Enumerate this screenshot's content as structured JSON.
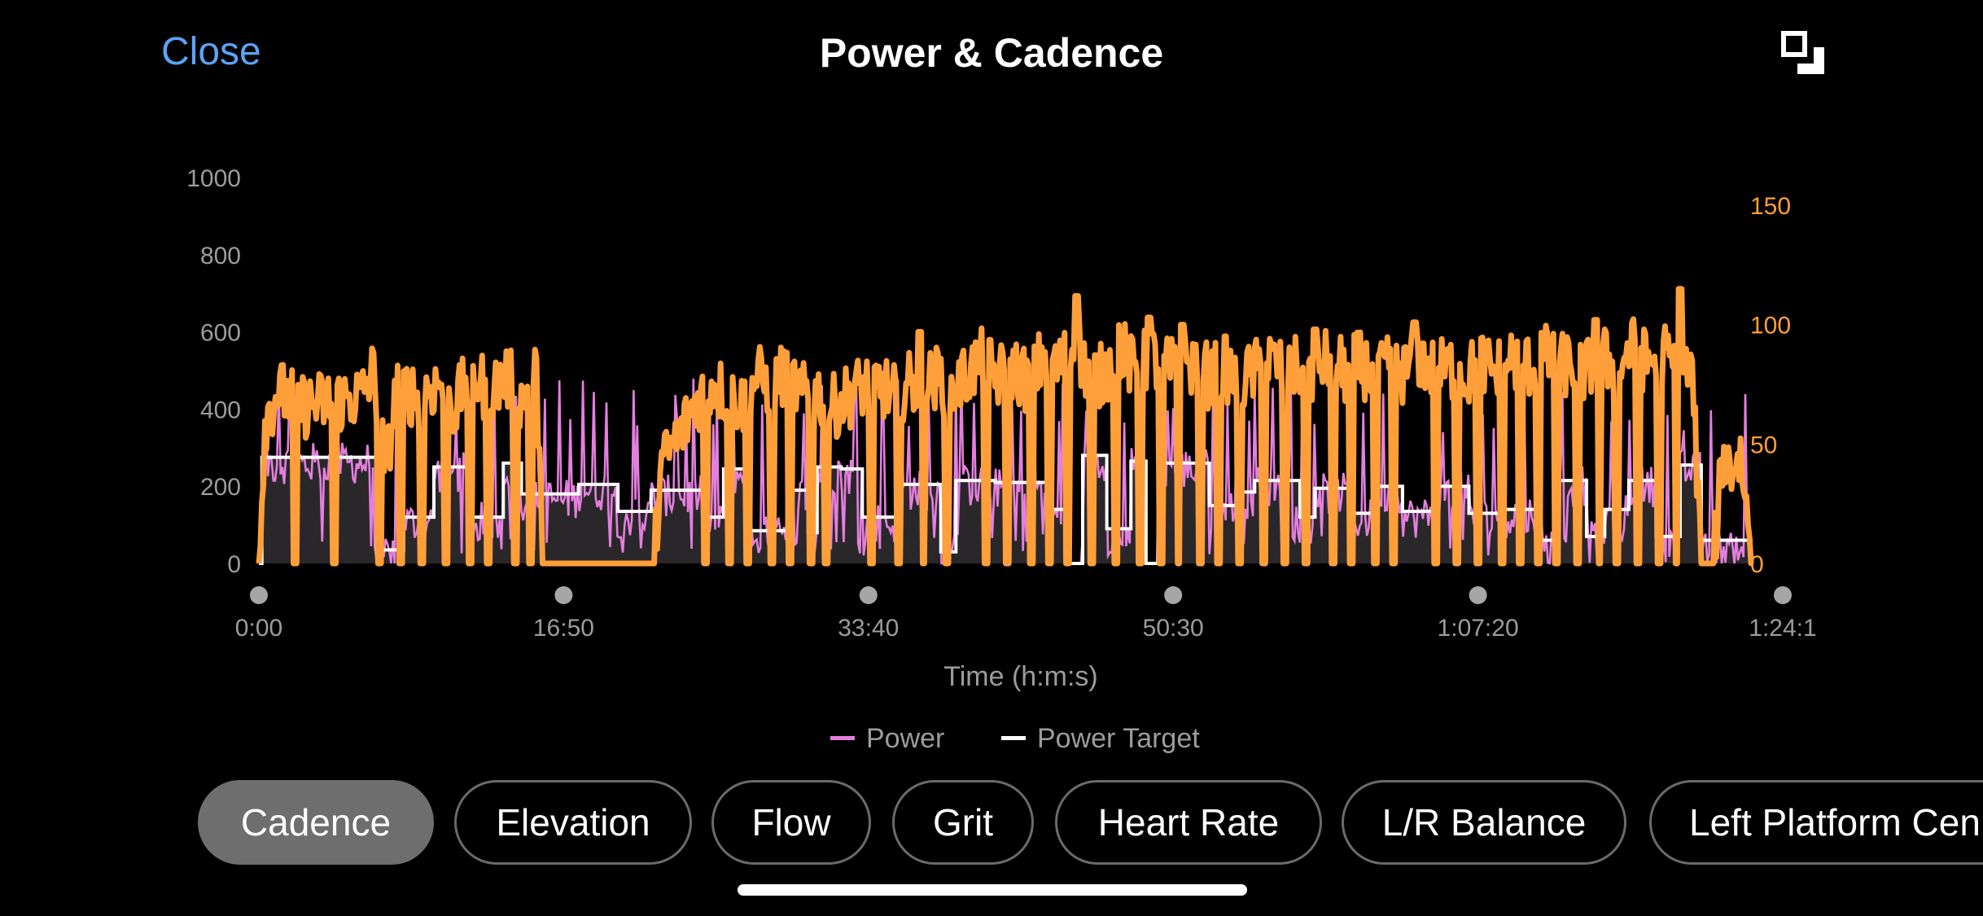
{
  "header": {
    "close_label": "Close",
    "title": "Power & Cadence"
  },
  "tabs": [
    {
      "label": "Cadence",
      "active": true
    },
    {
      "label": "Elevation",
      "active": false
    },
    {
      "label": "Flow",
      "active": false
    },
    {
      "label": "Grit",
      "active": false
    },
    {
      "label": "Heart Rate",
      "active": false
    },
    {
      "label": "L/R Balance",
      "active": false
    },
    {
      "label": "Left Platform Cen",
      "active": false
    }
  ],
  "icons": {
    "expand": "expand-icon"
  },
  "colors": {
    "accent": "#5aa4f5",
    "power": "#e47fde",
    "power_target": "#ffffff",
    "cadence": "#ff9f3a"
  },
  "chart_data": {
    "type": "line",
    "xlabel": "Time (h:m:s)",
    "x_ticks": [
      "0:00",
      "16:50",
      "33:40",
      "50:30",
      "1:07:20",
      "1:24:1"
    ],
    "x_range_seconds": [
      0,
      5050
    ],
    "y_left_ticks": [
      0,
      200,
      400,
      600,
      800,
      1000
    ],
    "y_left_range": [
      0,
      1000
    ],
    "y_right_ticks": [
      0,
      50,
      100,
      150
    ],
    "y_right_range": [
      0,
      163
    ],
    "legend": [
      {
        "name": "Power",
        "color": "#e47fde"
      },
      {
        "name": "Power Target",
        "color": "#ffffff"
      }
    ],
    "series": {
      "power_target_steps": [
        [
          0,
          0
        ],
        [
          10,
          275
        ],
        [
          370,
          275
        ],
        [
          390,
          35
        ],
        [
          450,
          35
        ],
        [
          480,
          120
        ],
        [
          560,
          120
        ],
        [
          580,
          250
        ],
        [
          680,
          250
        ],
        [
          700,
          120
        ],
        [
          800,
          120
        ],
        [
          810,
          260
        ],
        [
          860,
          260
        ],
        [
          870,
          180
        ],
        [
          1050,
          180
        ],
        [
          1060,
          205
        ],
        [
          1175,
          205
        ],
        [
          1190,
          135
        ],
        [
          1290,
          135
        ],
        [
          1300,
          190
        ],
        [
          1350,
          190
        ],
        [
          1360,
          190
        ],
        [
          1470,
          190
        ],
        [
          1480,
          120
        ],
        [
          1530,
          120
        ],
        [
          1540,
          245
        ],
        [
          1620,
          245
        ],
        [
          1630,
          85
        ],
        [
          1740,
          85
        ],
        [
          1750,
          190
        ],
        [
          1810,
          190
        ],
        [
          1820,
          80
        ],
        [
          1840,
          80
        ],
        [
          1850,
          250
        ],
        [
          1920,
          250
        ],
        [
          1930,
          245
        ],
        [
          1990,
          245
        ],
        [
          2000,
          120
        ],
        [
          2100,
          120
        ],
        [
          2110,
          205
        ],
        [
          2250,
          205
        ],
        [
          2260,
          30
        ],
        [
          2300,
          30
        ],
        [
          2310,
          215
        ],
        [
          2430,
          215
        ],
        [
          2440,
          210
        ],
        [
          2600,
          210
        ],
        [
          2610,
          140
        ],
        [
          2670,
          140
        ],
        [
          2680,
          0
        ],
        [
          2720,
          0
        ],
        [
          2730,
          280
        ],
        [
          2800,
          280
        ],
        [
          2810,
          90
        ],
        [
          2880,
          90
        ],
        [
          2890,
          265
        ],
        [
          2930,
          265
        ],
        [
          2940,
          0
        ],
        [
          2970,
          0
        ],
        [
          2980,
          260
        ],
        [
          3140,
          260
        ],
        [
          3150,
          150
        ],
        [
          3240,
          150
        ],
        [
          3250,
          185
        ],
        [
          3290,
          185
        ],
        [
          3300,
          215
        ],
        [
          3440,
          215
        ],
        [
          3450,
          120
        ],
        [
          3490,
          120
        ],
        [
          3500,
          195
        ],
        [
          3610,
          195
        ],
        [
          3620,
          130
        ],
        [
          3690,
          130
        ],
        [
          3700,
          200
        ],
        [
          3780,
          200
        ],
        [
          3790,
          135
        ],
        [
          3880,
          135
        ],
        [
          3890,
          200
        ],
        [
          4000,
          200
        ],
        [
          4010,
          130
        ],
        [
          4100,
          130
        ],
        [
          4110,
          140
        ],
        [
          4240,
          140
        ],
        [
          4250,
          60
        ],
        [
          4290,
          60
        ],
        [
          4300,
          215
        ],
        [
          4390,
          215
        ],
        [
          4400,
          70
        ],
        [
          4450,
          70
        ],
        [
          4460,
          140
        ],
        [
          4530,
          140
        ],
        [
          4540,
          215
        ],
        [
          4620,
          215
        ],
        [
          4630,
          70
        ],
        [
          4700,
          70
        ],
        [
          4710,
          255
        ],
        [
          4770,
          255
        ],
        [
          4780,
          60
        ],
        [
          4950,
          60
        ]
      ],
      "cadence_anchors": [
        [
          0,
          0
        ],
        [
          20,
          60
        ],
        [
          60,
          72
        ],
        [
          150,
          66
        ],
        [
          250,
          68
        ],
        [
          340,
          70
        ],
        [
          380,
          80
        ],
        [
          420,
          40
        ],
        [
          460,
          75
        ],
        [
          520,
          70
        ],
        [
          600,
          76
        ],
        [
          650,
          65
        ],
        [
          700,
          80
        ],
        [
          760,
          72
        ],
        [
          820,
          78
        ],
        [
          880,
          68
        ],
        [
          920,
          80
        ],
        [
          940,
          0
        ],
        [
          1310,
          0
        ],
        [
          1330,
          40
        ],
        [
          1400,
          55
        ],
        [
          1450,
          68
        ],
        [
          1500,
          75
        ],
        [
          1560,
          70
        ],
        [
          1600,
          66
        ],
        [
          1650,
          78
        ],
        [
          1700,
          74
        ],
        [
          1750,
          80
        ],
        [
          1800,
          70
        ],
        [
          1850,
          72
        ],
        [
          1900,
          65
        ],
        [
          1950,
          70
        ],
        [
          2000,
          74
        ],
        [
          2050,
          76
        ],
        [
          2100,
          70
        ],
        [
          2150,
          75
        ],
        [
          2200,
          73
        ],
        [
          2250,
          78
        ],
        [
          2300,
          72
        ],
        [
          2350,
          80
        ],
        [
          2400,
          85
        ],
        [
          2450,
          78
        ],
        [
          2500,
          82
        ],
        [
          2560,
          75
        ],
        [
          2600,
          88
        ],
        [
          2650,
          82
        ],
        [
          2700,
          90
        ],
        [
          2750,
          80
        ],
        [
          2800,
          78
        ],
        [
          2850,
          92
        ],
        [
          2900,
          80
        ],
        [
          2950,
          86
        ],
        [
          3000,
          82
        ],
        [
          3050,
          80
        ],
        [
          3100,
          84
        ],
        [
          3150,
          78
        ],
        [
          3200,
          82
        ],
        [
          3250,
          76
        ],
        [
          3300,
          80
        ],
        [
          3350,
          85
        ],
        [
          3400,
          80
        ],
        [
          3450,
          82
        ],
        [
          3500,
          80
        ],
        [
          3550,
          86
        ],
        [
          3600,
          80
        ],
        [
          3650,
          84
        ],
        [
          3700,
          78
        ],
        [
          3750,
          82
        ],
        [
          3800,
          80
        ],
        [
          3850,
          86
        ],
        [
          3900,
          80
        ],
        [
          3950,
          82
        ],
        [
          4000,
          78
        ],
        [
          4050,
          84
        ],
        [
          4100,
          80
        ],
        [
          4150,
          86
        ],
        [
          4200,
          82
        ],
        [
          4250,
          88
        ],
        [
          4300,
          82
        ],
        [
          4350,
          84
        ],
        [
          4400,
          80
        ],
        [
          4450,
          86
        ],
        [
          4500,
          82
        ],
        [
          4550,
          90
        ],
        [
          4600,
          84
        ],
        [
          4650,
          88
        ],
        [
          4700,
          82
        ],
        [
          4750,
          80
        ],
        [
          4780,
          0
        ],
        [
          4820,
          0
        ],
        [
          4850,
          45
        ],
        [
          4880,
          40
        ],
        [
          4910,
          45
        ],
        [
          4950,
          0
        ]
      ],
      "cadence_drops_seconds": [
        120,
        250,
        400,
        470,
        540,
        620,
        700,
        760,
        850,
        900,
        1480,
        1560,
        1620,
        1700,
        1760,
        1830,
        1880,
        2030,
        2120,
        2200,
        2280,
        2410,
        2480,
        2560,
        2620,
        2680,
        2760,
        2840,
        2920,
        2990,
        3050,
        3120,
        3180,
        3250,
        3330,
        3400,
        3470,
        3560,
        3620,
        3700,
        3760,
        3830,
        3900,
        3970,
        4040,
        4120,
        4180,
        4240,
        4300,
        4370,
        4440,
        4500,
        4570,
        4640,
        4700
      ],
      "cadence_peaks": [
        [
          2710,
          112
        ],
        [
          4710,
          115
        ],
        [
          4430,
          102
        ],
        [
          3060,
          100
        ],
        [
          2960,
          96
        ],
        [
          3500,
          98
        ],
        [
          3830,
          101
        ],
        [
          2190,
          97
        ],
        [
          2950,
          103
        ]
      ],
      "power_baseline_offset": -15,
      "power_noise": 55,
      "power_spike_count": 90,
      "power_spike_range": [
        330,
        480
      ],
      "cadence_noise_amp": 14,
      "cadence_random_seed": 12345
    }
  }
}
